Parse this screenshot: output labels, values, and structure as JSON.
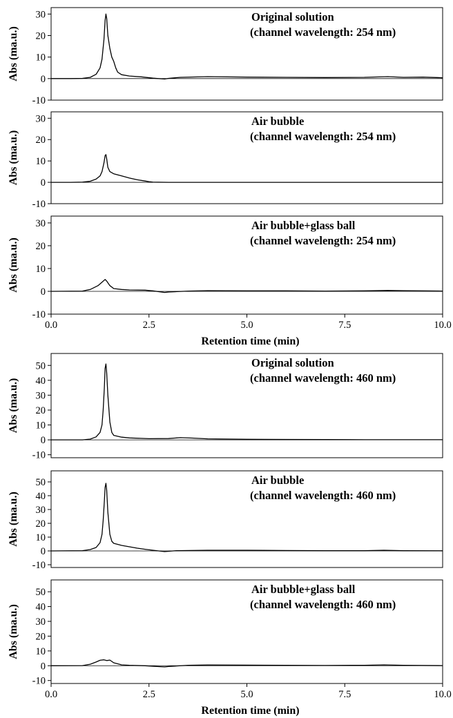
{
  "chart_data": [
    {
      "type": "line",
      "title": [
        "Original solution",
        "(channel wavelength: 254 nm)"
      ],
      "ylabel": "Abs (ma.u.)",
      "xlabel": "",
      "xlim": [
        0,
        10
      ],
      "ylim": [
        -10,
        33
      ],
      "yticks": [
        -10,
        0,
        10,
        20,
        30
      ],
      "xticks": [],
      "x": [
        0,
        0.5,
        0.8,
        1.0,
        1.15,
        1.25,
        1.3,
        1.35,
        1.38,
        1.4,
        1.42,
        1.45,
        1.5,
        1.55,
        1.6,
        1.65,
        1.7,
        1.8,
        2.0,
        2.3,
        2.6,
        2.9,
        3.0,
        3.3,
        4.0,
        5.0,
        6.0,
        7.0,
        8.0,
        8.6,
        9.0,
        9.5,
        10.0
      ],
      "y": [
        0,
        0,
        0.1,
        0.6,
        2,
        5,
        9,
        18,
        27,
        30,
        28,
        20,
        14,
        10,
        8,
        5,
        3,
        1.8,
        1.2,
        0.8,
        0.2,
        -0.2,
        0.1,
        0.6,
        0.9,
        0.7,
        0.6,
        0.5,
        0.6,
        0.9,
        0.6,
        0.7,
        0.4
      ]
    },
    {
      "type": "line",
      "title": [
        "Air bubble",
        "(channel wavelength: 254 nm)"
      ],
      "ylabel": "Abs (ma.u.)",
      "xlabel": "",
      "xlim": [
        0,
        10
      ],
      "ylim": [
        -10,
        33
      ],
      "yticks": [
        -10,
        0,
        10,
        20,
        30
      ],
      "xticks": [],
      "x": [
        0,
        0.5,
        0.8,
        1.0,
        1.15,
        1.25,
        1.3,
        1.35,
        1.38,
        1.4,
        1.42,
        1.45,
        1.5,
        1.6,
        1.8,
        2.0,
        2.2,
        2.4,
        2.5,
        2.6,
        3.0,
        4.0,
        5.0,
        6.0,
        7.0,
        8.0,
        9.0,
        10.0
      ],
      "y": [
        0,
        0,
        0.1,
        0.5,
        1.5,
        3,
        5,
        9,
        12.5,
        13,
        11,
        7,
        5,
        4,
        3,
        2,
        1.2,
        0.6,
        0.3,
        0.1,
        0,
        0,
        0,
        0,
        0,
        0,
        0,
        0
      ]
    },
    {
      "type": "line",
      "title": [
        "Air bubble+glass ball",
        "(channel wavelength: 254 nm)"
      ],
      "ylabel": "Abs (ma.u.)",
      "xlabel": "Retention time (min)",
      "xlim": [
        0,
        10
      ],
      "ylim": [
        -10,
        33
      ],
      "yticks": [
        -10,
        0,
        10,
        20,
        30
      ],
      "xticks": [
        "0.0",
        "2.5",
        "5.0",
        "7.5",
        "10.0"
      ],
      "x": [
        0,
        0.8,
        1.0,
        1.2,
        1.3,
        1.38,
        1.42,
        1.5,
        1.6,
        1.8,
        2.0,
        2.4,
        2.6,
        2.9,
        3.0,
        3.5,
        4.0,
        5.0,
        6.0,
        7.0,
        8.0,
        8.6,
        9.0,
        10.0
      ],
      "y": [
        0,
        0.1,
        0.8,
        2.5,
        4,
        5.2,
        4.5,
        2.5,
        1.2,
        0.8,
        0.6,
        0.5,
        0.2,
        -0.5,
        -0.3,
        0.1,
        0.3,
        0.2,
        0.2,
        0.1,
        0.2,
        0.4,
        0.3,
        0.1
      ]
    },
    {
      "type": "line",
      "title": [
        "Original solution",
        "(channel wavelength: 460 nm)"
      ],
      "ylabel": "Abs (ma.u.)",
      "xlabel": "",
      "xlim": [
        0,
        10
      ],
      "ylim": [
        -12,
        58
      ],
      "yticks": [
        -10,
        0,
        10,
        20,
        30,
        40,
        50
      ],
      "xticks": [],
      "x": [
        0,
        0.8,
        1.0,
        1.15,
        1.25,
        1.3,
        1.33,
        1.36,
        1.38,
        1.4,
        1.42,
        1.45,
        1.5,
        1.55,
        1.6,
        1.8,
        2.0,
        2.5,
        3.0,
        3.3,
        3.6,
        4.0,
        5.0,
        6.0,
        7.0,
        8.0,
        9.0,
        10.0
      ],
      "y": [
        0,
        0,
        0.5,
        2,
        5,
        10,
        20,
        35,
        48,
        51,
        45,
        30,
        12,
        5,
        3,
        1.8,
        1.3,
        0.8,
        0.9,
        1.5,
        1.2,
        0.7,
        0.4,
        0.3,
        0.2,
        0.1,
        0.1,
        0.1
      ]
    },
    {
      "type": "line",
      "title": [
        "Air bubble",
        "(channel wavelength: 460 nm)"
      ],
      "ylabel": "Abs (ma.u.)",
      "xlabel": "",
      "xlim": [
        0,
        10
      ],
      "ylim": [
        -12,
        58
      ],
      "yticks": [
        -10,
        0,
        10,
        20,
        30,
        40,
        50
      ],
      "xticks": [],
      "x": [
        0,
        0.8,
        1.0,
        1.15,
        1.25,
        1.3,
        1.33,
        1.36,
        1.38,
        1.4,
        1.42,
        1.45,
        1.5,
        1.55,
        1.6,
        1.8,
        2.0,
        2.2,
        2.4,
        2.6,
        2.9,
        3.2,
        4.0,
        5.0,
        6.0,
        7.0,
        8.0,
        8.5,
        9.0,
        10.0
      ],
      "y": [
        0,
        0.2,
        1,
        2.5,
        6,
        12,
        22,
        36,
        46,
        49,
        44,
        28,
        12,
        7,
        5.5,
        4,
        3,
        2,
        1.2,
        0.5,
        -0.5,
        0.2,
        0.5,
        0.5,
        0.3,
        0.2,
        0.2,
        0.5,
        0.2,
        0.1
      ]
    },
    {
      "type": "line",
      "title": [
        "Air bubble+glass ball",
        "(channel wavelength: 460 nm)"
      ],
      "ylabel": "Abs (ma.u.)",
      "xlabel": "Retention time (min)",
      "xlim": [
        0,
        10
      ],
      "ylim": [
        -12,
        58
      ],
      "yticks": [
        -10,
        0,
        10,
        20,
        30,
        40,
        50
      ],
      "xticks": [
        "0.0",
        "2.5",
        "5.0",
        "7.5",
        "10.0"
      ],
      "x": [
        0,
        0.8,
        1.0,
        1.15,
        1.25,
        1.35,
        1.42,
        1.5,
        1.6,
        1.8,
        2.0,
        2.4,
        2.7,
        2.9,
        3.0,
        3.5,
        4.0,
        5.0,
        6.0,
        7.0,
        8.0,
        8.5,
        9.0,
        10.0
      ],
      "y": [
        0,
        0.1,
        1,
        2.5,
        3.7,
        4,
        3.5,
        3.8,
        2,
        0.6,
        0.3,
        0,
        -0.5,
        -0.8,
        -0.5,
        0.3,
        0.5,
        0.4,
        0.3,
        0.2,
        0.3,
        0.6,
        0.3,
        0.1
      ]
    }
  ]
}
